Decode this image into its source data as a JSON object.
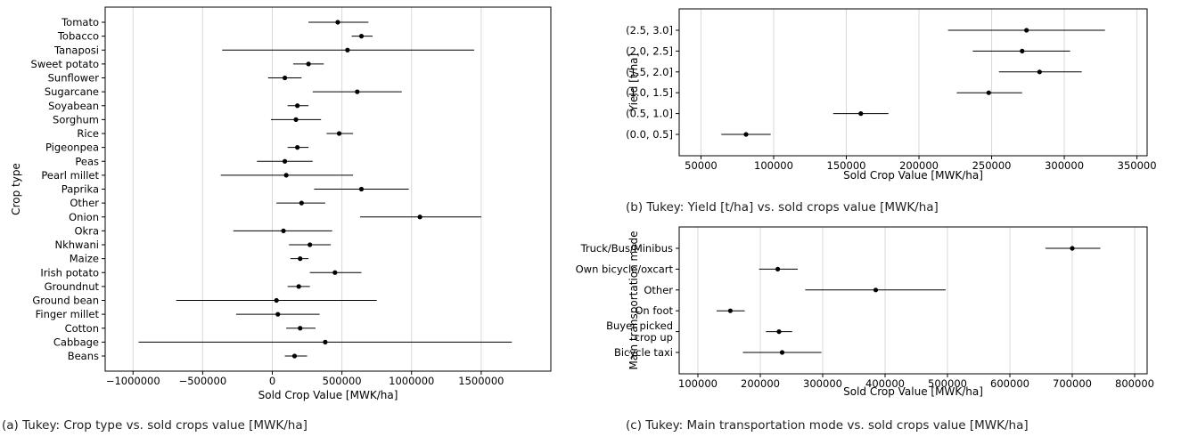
{
  "captions": {
    "a": "(a) Tukey: Crop type vs. sold crops value [MWK/ha]",
    "b": "(b) Tukey: Yield [t/ha] vs. sold crops value [MWK/ha]",
    "c": "(c) Tukey: Main transportation mode vs. sold crops value [MWK/ha]"
  },
  "chart_data": [
    {
      "type": "scatter",
      "subtype": "tukey-interval",
      "xlabel": "Sold Crop Value [MWK/ha]",
      "ylabel": "Crop type",
      "xlim": [
        -1200000,
        2000000
      ],
      "xticks": [
        -1000000,
        -500000,
        0,
        500000,
        1000000,
        1500000
      ],
      "xtick_labels": [
        "−1000000",
        "−500000",
        "0",
        "500000",
        "1000000",
        "1500000"
      ],
      "grid": "vertical",
      "categories": [
        "Tomato",
        "Tobacco",
        "Tanaposi",
        "Sweet potato",
        "Sunflower",
        "Sugarcane",
        "Soyabean",
        "Sorghum",
        "Rice",
        "Pigeonpea",
        "Peas",
        "Pearl millet",
        "Paprika",
        "Other",
        "Onion",
        "Okra",
        "Nkhwani",
        "Maize",
        "Irish potato",
        "Groundnut",
        "Ground bean",
        "Finger millet",
        "Cotton",
        "Cabbage",
        "Beans"
      ],
      "mean": [
        470000,
        640000,
        540000,
        260000,
        90000,
        610000,
        180000,
        170000,
        480000,
        180000,
        90000,
        100000,
        640000,
        210000,
        1060000,
        80000,
        270000,
        200000,
        450000,
        190000,
        30000,
        40000,
        200000,
        380000,
        160000
      ],
      "lower": [
        260000,
        570000,
        -360000,
        150000,
        -30000,
        290000,
        110000,
        -10000,
        390000,
        110000,
        -110000,
        -370000,
        300000,
        30000,
        630000,
        -280000,
        120000,
        130000,
        270000,
        110000,
        -690000,
        -260000,
        100000,
        -960000,
        90000
      ],
      "upper": [
        690000,
        720000,
        1450000,
        370000,
        210000,
        930000,
        260000,
        350000,
        580000,
        260000,
        290000,
        580000,
        980000,
        380000,
        1500000,
        430000,
        420000,
        260000,
        640000,
        270000,
        750000,
        340000,
        310000,
        1720000,
        250000
      ]
    },
    {
      "type": "scatter",
      "subtype": "tukey-interval",
      "xlabel": "Sold Crop Value [MWK/ha]",
      "ylabel": "Yield [t/ha]",
      "xlim": [
        35000,
        357000
      ],
      "xticks": [
        50000,
        100000,
        150000,
        200000,
        250000,
        300000,
        350000
      ],
      "grid": "vertical",
      "categories": [
        "(2.5, 3.0]",
        "(2.0, 2.5]",
        "(1.5, 2.0]",
        "(1.0, 1.5]",
        "(0.5, 1.0]",
        "(0.0, 0.5]"
      ],
      "mean": [
        274000,
        271000,
        283000,
        248000,
        160000,
        81000
      ],
      "lower": [
        220000,
        237000,
        255000,
        226000,
        141000,
        64000
      ],
      "upper": [
        328000,
        304000,
        312000,
        271000,
        179000,
        98000
      ]
    },
    {
      "type": "scatter",
      "subtype": "tukey-interval",
      "xlabel": "Sold Crop Value [MWK/ha]",
      "ylabel": "Main transportation mode",
      "xlim": [
        70000,
        820000
      ],
      "xticks": [
        100000,
        200000,
        300000,
        400000,
        500000,
        600000,
        700000,
        800000
      ],
      "grid": "vertical",
      "categories": [
        "Truck/Bus/Minibus",
        "Own bicycle/oxcart",
        "Other",
        "On foot",
        "Buyer picked\ncrop up",
        "Bicycle taxi"
      ],
      "mean": [
        700000,
        228000,
        385000,
        152000,
        230000,
        235000
      ],
      "lower": [
        657000,
        198000,
        272000,
        130000,
        209000,
        172000
      ],
      "upper": [
        745000,
        260000,
        497000,
        175000,
        251000,
        298000
      ]
    }
  ]
}
